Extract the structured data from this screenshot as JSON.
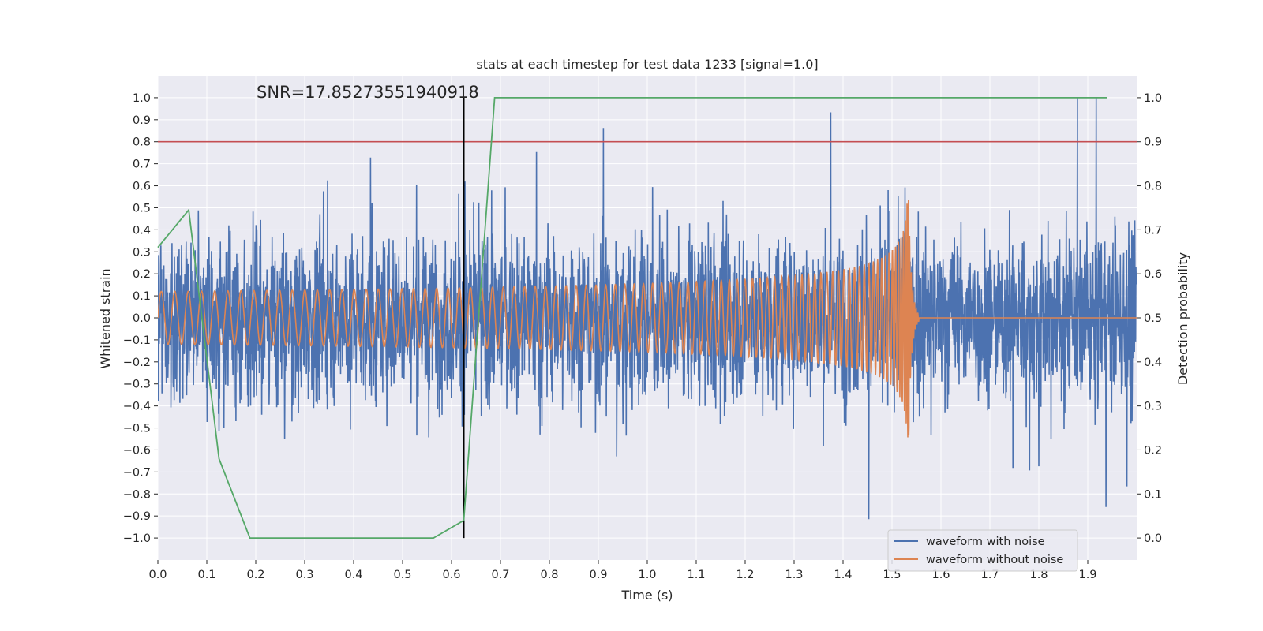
{
  "chart_data": {
    "type": "line",
    "title": "stats at each timestep for test data 1233 [signal=1.0]",
    "xlabel": "Time (s)",
    "ylabel": "Whitened strain",
    "y2label": "Detection probability",
    "xlim": [
      0.0,
      2.0
    ],
    "ylim": [
      -1.1,
      1.1
    ],
    "y2lim": [
      -0.05,
      1.05
    ],
    "x_ticks": [
      "0.0",
      "0.1",
      "0.2",
      "0.3",
      "0.4",
      "0.5",
      "0.6",
      "0.7",
      "0.8",
      "0.9",
      "1.0",
      "1.1",
      "1.2",
      "1.3",
      "1.4",
      "1.5",
      "1.6",
      "1.7",
      "1.8",
      "1.9"
    ],
    "y_ticks": [
      "−1.0",
      "−0.9",
      "−0.8",
      "−0.7",
      "−0.6",
      "−0.5",
      "−0.4",
      "−0.3",
      "−0.2",
      "−0.1",
      "0.0",
      "0.1",
      "0.2",
      "0.3",
      "0.4",
      "0.5",
      "0.6",
      "0.7",
      "0.8",
      "0.9",
      "1.0"
    ],
    "y2_ticks": [
      "0.0",
      "0.1",
      "0.2",
      "0.3",
      "0.4",
      "0.5",
      "0.6",
      "0.7",
      "0.8",
      "0.9",
      "1.0"
    ],
    "annotation": "SNR=17.85273551940918",
    "detection_time": 0.625,
    "threshold": 0.9,
    "grid": true,
    "legend_position": "lower-right",
    "colors": {
      "noisy": "#4c72b0",
      "clean": "#dd8452",
      "probability": "#55a868",
      "threshold": "#c44e52",
      "marker": "#000000",
      "background": "#eaeaf2",
      "grid": "#ffffff"
    },
    "series": [
      {
        "name": "waveform with noise",
        "description": "dense noisy whitened strain, peaks roughly between -1.0 and 1.0 over 0.0-2.0 s"
      },
      {
        "name": "waveform without noise",
        "description": "chirp: amplitude ~0.12 growing to ~0.6 with rising frequency, merger near 1.53 s, flat zero after ~1.55 s"
      },
      {
        "name": "detection probability",
        "axis": "right",
        "x": [
          0.0,
          0.063,
          0.125,
          0.188,
          0.25,
          0.313,
          0.375,
          0.438,
          0.5,
          0.563,
          0.625,
          0.688,
          0.75,
          0.813,
          0.875,
          0.938,
          1.0,
          1.063,
          1.125,
          1.188,
          1.25,
          1.313,
          1.375,
          1.438,
          1.5,
          1.563,
          1.625,
          1.688,
          1.75,
          1.813,
          1.875,
          1.94
        ],
        "values": [
          0.66,
          0.745,
          0.18,
          0.0,
          0.0,
          0.0,
          0.0,
          0.0,
          0.0,
          0.0,
          0.04,
          1.0,
          1.0,
          1.0,
          1.0,
          1.0,
          1.0,
          1.0,
          1.0,
          1.0,
          1.0,
          1.0,
          1.0,
          1.0,
          1.0,
          1.0,
          1.0,
          1.0,
          1.0,
          1.0,
          1.0,
          1.0
        ]
      }
    ]
  }
}
